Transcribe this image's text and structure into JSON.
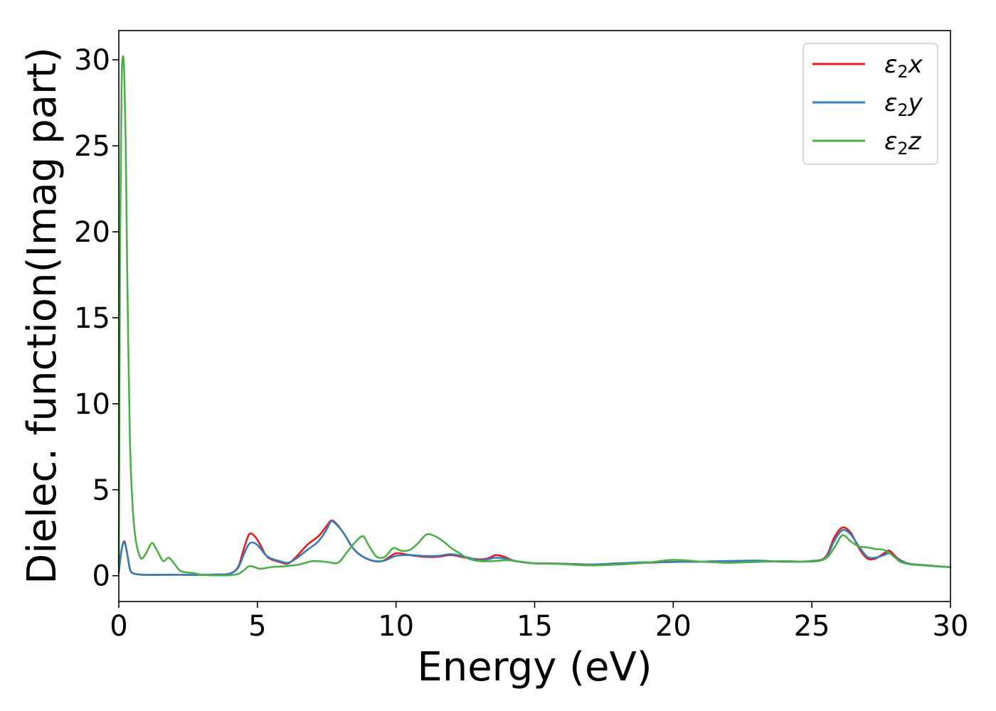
{
  "chart_data": {
    "type": "line",
    "title": "",
    "xlabel": "Energy (eV)",
    "ylabel": "Dielec. function(Imag part)",
    "xlim": [
      0,
      30
    ],
    "ylim": [
      -1.5,
      31.7
    ],
    "xticks": [
      0,
      5,
      10,
      15,
      20,
      25,
      30
    ],
    "yticks": [
      0,
      5,
      10,
      15,
      20,
      25,
      30
    ],
    "grid": false,
    "legend_position": "top-right",
    "series": [
      {
        "name": "ε₂x",
        "name_base": "ε",
        "name_sub": "2",
        "name_suffix": "x",
        "color": "#e41a1c",
        "x": [
          0,
          0.1,
          0.2,
          0.3,
          0.4,
          0.5,
          0.7,
          1.0,
          1.5,
          2.0,
          2.5,
          3.0,
          3.5,
          4.0,
          4.3,
          4.5,
          4.7,
          4.9,
          5.1,
          5.3,
          5.5,
          5.8,
          6.1,
          6.4,
          6.8,
          7.2,
          7.5,
          7.65,
          7.8,
          8.1,
          8.5,
          9.0,
          9.5,
          10.0,
          10.5,
          11.0,
          11.5,
          12.0,
          12.5,
          13.0,
          13.3,
          13.6,
          13.9,
          14.2,
          14.5,
          15.0,
          16.0,
          17.0,
          18.0,
          19.0,
          20.0,
          21.0,
          22.0,
          23.0,
          24.0,
          25.0,
          25.5,
          25.8,
          26.1,
          26.4,
          26.7,
          27.0,
          27.3,
          27.6,
          27.8,
          28.1,
          28.5,
          29.0,
          29.5,
          30.0
        ],
        "y": [
          0.2,
          1.5,
          2.0,
          1.3,
          0.4,
          0.15,
          0.08,
          0.05,
          0.05,
          0.06,
          0.05,
          0.05,
          0.07,
          0.12,
          0.5,
          1.5,
          2.4,
          2.3,
          1.8,
          1.2,
          0.95,
          0.8,
          0.7,
          1.1,
          1.8,
          2.3,
          2.9,
          3.2,
          3.1,
          2.5,
          1.5,
          0.95,
          0.85,
          1.3,
          1.2,
          1.1,
          1.1,
          1.2,
          1.05,
          0.95,
          1.0,
          1.2,
          1.1,
          0.9,
          0.8,
          0.72,
          0.7,
          0.65,
          0.7,
          0.75,
          0.8,
          0.82,
          0.85,
          0.85,
          0.82,
          0.85,
          1.1,
          2.2,
          2.8,
          2.5,
          1.6,
          1.0,
          1.0,
          1.3,
          1.45,
          1.0,
          0.7,
          0.62,
          0.55,
          0.5
        ]
      },
      {
        "name": "ε₂y",
        "name_base": "ε",
        "name_sub": "2",
        "name_suffix": "y",
        "color": "#377eb8",
        "x": [
          0,
          0.1,
          0.2,
          0.3,
          0.4,
          0.5,
          0.7,
          1.0,
          1.5,
          2.0,
          2.5,
          3.0,
          3.5,
          4.0,
          4.3,
          4.5,
          4.7,
          4.9,
          5.1,
          5.3,
          5.5,
          5.8,
          6.1,
          6.4,
          6.8,
          7.2,
          7.5,
          7.65,
          7.8,
          8.1,
          8.5,
          9.0,
          9.5,
          10.0,
          10.5,
          11.0,
          11.5,
          12.0,
          12.5,
          13.0,
          13.3,
          13.6,
          13.9,
          14.2,
          14.5,
          15.0,
          16.0,
          17.0,
          18.0,
          19.0,
          20.0,
          21.0,
          22.0,
          23.0,
          24.0,
          25.0,
          25.5,
          25.8,
          26.1,
          26.4,
          26.7,
          27.0,
          27.3,
          27.6,
          27.8,
          28.1,
          28.5,
          29.0,
          29.5,
          30.0
        ],
        "y": [
          0.2,
          1.5,
          1.95,
          1.3,
          0.4,
          0.15,
          0.08,
          0.05,
          0.05,
          0.06,
          0.05,
          0.05,
          0.07,
          0.12,
          0.45,
          1.2,
          1.85,
          1.9,
          1.6,
          1.2,
          1.0,
          0.85,
          0.75,
          1.0,
          1.5,
          2.0,
          2.7,
          3.15,
          3.05,
          2.5,
          1.5,
          0.95,
          0.85,
          1.15,
          1.2,
          1.15,
          1.15,
          1.25,
          1.1,
          0.9,
          0.95,
          1.05,
          1.0,
          0.88,
          0.8,
          0.72,
          0.7,
          0.65,
          0.72,
          0.78,
          0.8,
          0.82,
          0.85,
          0.88,
          0.82,
          0.85,
          1.05,
          2.0,
          2.65,
          2.4,
          1.7,
          1.1,
          1.05,
          1.2,
          1.3,
          0.95,
          0.7,
          0.62,
          0.55,
          0.5
        ]
      },
      {
        "name": "ε₂z",
        "name_base": "ε",
        "name_sub": "2",
        "name_suffix": "z",
        "color": "#4daf4a",
        "x": [
          0,
          0.05,
          0.1,
          0.15,
          0.2,
          0.25,
          0.3,
          0.4,
          0.5,
          0.6,
          0.7,
          0.8,
          0.9,
          1.0,
          1.2,
          1.4,
          1.6,
          1.8,
          2.0,
          2.2,
          2.4,
          2.7,
          3.0,
          3.5,
          4.0,
          4.3,
          4.5,
          4.7,
          4.9,
          5.1,
          5.5,
          6.0,
          6.5,
          7.0,
          7.5,
          7.9,
          8.2,
          8.5,
          8.8,
          9.0,
          9.3,
          9.6,
          9.9,
          10.2,
          10.5,
          10.8,
          11.1,
          11.4,
          11.7,
          12.0,
          12.3,
          12.6,
          13.0,
          13.5,
          14.0,
          14.5,
          15.0,
          16.0,
          17.0,
          18.0,
          19.0,
          20.0,
          21.0,
          22.0,
          23.0,
          24.0,
          25.0,
          25.5,
          25.8,
          26.1,
          26.4,
          26.7,
          27.0,
          27.3,
          27.6,
          27.9,
          28.2,
          28.6,
          29.0,
          29.5,
          30.0
        ],
        "y": [
          0.5,
          20.0,
          28.5,
          30.2,
          29.0,
          25.0,
          18.0,
          8.0,
          4.0,
          2.2,
          1.4,
          1.0,
          1.1,
          1.35,
          1.9,
          1.4,
          0.85,
          1.05,
          0.7,
          0.3,
          0.2,
          0.15,
          0.05,
          0.02,
          0.03,
          0.1,
          0.3,
          0.55,
          0.5,
          0.4,
          0.5,
          0.55,
          0.65,
          0.85,
          0.8,
          0.75,
          1.3,
          1.9,
          2.3,
          1.8,
          1.1,
          1.1,
          1.6,
          1.45,
          1.5,
          1.9,
          2.4,
          2.3,
          2.0,
          1.6,
          1.3,
          1.0,
          0.85,
          0.85,
          0.9,
          0.82,
          0.72,
          0.68,
          0.6,
          0.65,
          0.75,
          0.92,
          0.82,
          0.75,
          0.8,
          0.85,
          0.82,
          1.0,
          1.6,
          2.35,
          2.0,
          1.7,
          1.65,
          1.55,
          1.5,
          1.2,
          0.8,
          0.65,
          0.6,
          0.55,
          0.5
        ]
      }
    ]
  }
}
